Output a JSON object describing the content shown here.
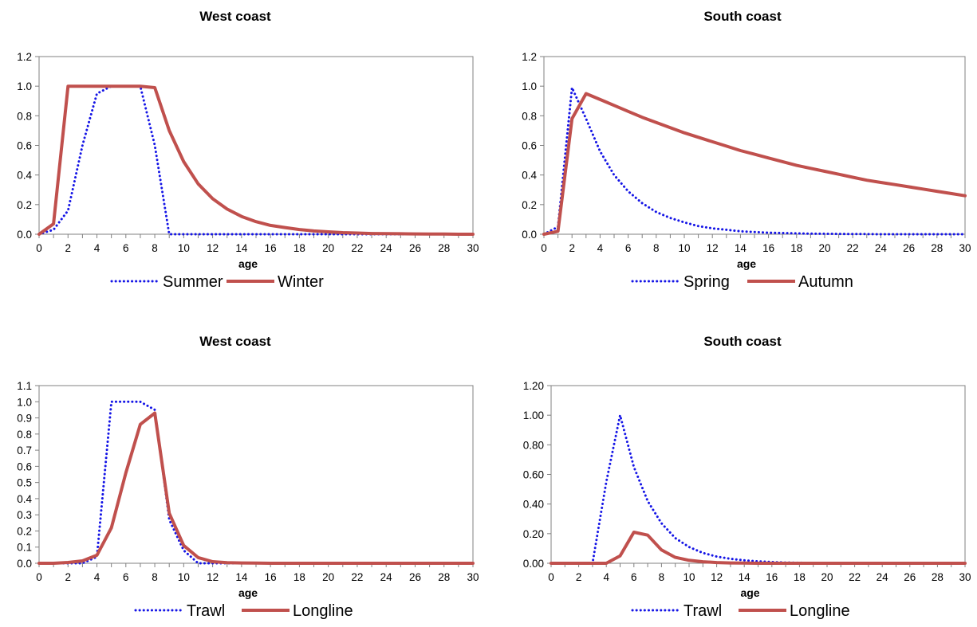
{
  "chart_data": [
    {
      "type": "line",
      "title": "West coast",
      "xlabel": "age",
      "ylabel": "",
      "xlim": [
        0,
        30
      ],
      "ylim": [
        0,
        1.2
      ],
      "yticks": [
        "0.0",
        "0.2",
        "0.4",
        "0.6",
        "0.8",
        "1.0",
        "1.2"
      ],
      "xticks": [
        "0",
        "2",
        "4",
        "6",
        "8",
        "10",
        "12",
        "14",
        "16",
        "18",
        "20",
        "22",
        "24",
        "26",
        "28",
        "30"
      ],
      "grid": false,
      "legend_position": "bottom",
      "x": [
        0,
        1,
        2,
        3,
        4,
        5,
        6,
        7,
        8,
        9,
        10,
        11,
        12,
        13,
        14,
        15,
        16,
        17,
        18,
        19,
        20,
        21,
        22,
        23,
        24,
        25,
        26,
        27,
        28,
        29,
        30
      ],
      "series": [
        {
          "name": "Summer",
          "style": "dotted",
          "color": "#1515e6",
          "values": [
            0,
            0.03,
            0.16,
            0.6,
            0.95,
            1.0,
            1.0,
            1.0,
            0.6,
            0,
            0,
            0,
            0,
            0,
            0,
            0,
            0,
            0,
            0,
            0,
            0,
            0,
            0,
            0,
            0,
            0,
            0,
            0,
            0,
            0,
            0
          ]
        },
        {
          "name": "Winter",
          "style": "solid",
          "color": "#c0504d",
          "values": [
            0,
            0.07,
            1.0,
            1.0,
            1.0,
            1.0,
            1.0,
            1.0,
            0.99,
            0.7,
            0.49,
            0.34,
            0.24,
            0.17,
            0.12,
            0.085,
            0.06,
            0.045,
            0.032,
            0.022,
            0.016,
            0.011,
            0.008,
            0.005,
            0.004,
            0.003,
            0.002,
            0.001,
            0.001,
            0,
            0
          ]
        }
      ]
    },
    {
      "type": "line",
      "title": "South coast",
      "xlabel": "age",
      "ylabel": "",
      "xlim": [
        0,
        30
      ],
      "ylim": [
        0,
        1.2
      ],
      "yticks": [
        "0.0",
        "0.2",
        "0.4",
        "0.6",
        "0.8",
        "1.0",
        "1.2"
      ],
      "xticks": [
        "0",
        "2",
        "4",
        "6",
        "8",
        "10",
        "12",
        "14",
        "16",
        "18",
        "20",
        "22",
        "24",
        "26",
        "28",
        "30"
      ],
      "grid": false,
      "legend_position": "bottom",
      "x": [
        0,
        1,
        2,
        3,
        4,
        5,
        6,
        7,
        8,
        9,
        10,
        11,
        12,
        13,
        14,
        15,
        16,
        17,
        18,
        19,
        20,
        21,
        22,
        23,
        24,
        25,
        26,
        27,
        28,
        29,
        30
      ],
      "series": [
        {
          "name": "Spring",
          "style": "dotted",
          "color": "#1515e6",
          "values": [
            0,
            0.05,
            0.99,
            0.78,
            0.56,
            0.4,
            0.29,
            0.21,
            0.15,
            0.11,
            0.08,
            0.055,
            0.04,
            0.03,
            0.02,
            0.015,
            0.01,
            0.008,
            0.006,
            0.004,
            0.003,
            0.002,
            0.001,
            0.001,
            0,
            0,
            0,
            0,
            0,
            0,
            0
          ]
        },
        {
          "name": "Autumn",
          "style": "solid",
          "color": "#c0504d",
          "values": [
            0.0,
            0.02,
            0.78,
            0.95,
            0.91,
            0.87,
            0.83,
            0.79,
            0.755,
            0.72,
            0.685,
            0.655,
            0.625,
            0.595,
            0.565,
            0.54,
            0.515,
            0.49,
            0.465,
            0.445,
            0.425,
            0.405,
            0.385,
            0.365,
            0.35,
            0.335,
            0.32,
            0.305,
            0.29,
            0.275,
            0.26
          ]
        }
      ]
    },
    {
      "type": "line",
      "title": "West coast",
      "xlabel": "age",
      "ylabel": "",
      "xlim": [
        0,
        30
      ],
      "ylim": [
        0,
        1.1
      ],
      "yticks": [
        "0.0",
        "0.1",
        "0.2",
        "0.3",
        "0.4",
        "0.5",
        "0.6",
        "0.7",
        "0.8",
        "0.9",
        "1.0",
        "1.1"
      ],
      "xticks": [
        "0",
        "2",
        "4",
        "6",
        "8",
        "10",
        "12",
        "14",
        "16",
        "18",
        "20",
        "22",
        "24",
        "26",
        "28",
        "30"
      ],
      "grid": false,
      "legend_position": "bottom",
      "x": [
        0,
        1,
        2,
        3,
        4,
        5,
        6,
        7,
        8,
        9,
        10,
        11,
        12,
        13,
        14,
        15,
        16,
        17,
        18,
        19,
        20,
        21,
        22,
        23,
        24,
        25,
        26,
        27,
        28,
        29,
        30
      ],
      "series": [
        {
          "name": "Trawl",
          "style": "dotted",
          "color": "#1515e6",
          "values": [
            0,
            0,
            0,
            0,
            0.04,
            1.0,
            1.0,
            1.0,
            0.95,
            0.27,
            0.08,
            0,
            0,
            0,
            0,
            0,
            0,
            0,
            0,
            0,
            0,
            0,
            0,
            0,
            0,
            0,
            0,
            0,
            0,
            0,
            0
          ]
        },
        {
          "name": "Longline",
          "style": "solid",
          "color": "#c0504d",
          "values": [
            0,
            0,
            0.005,
            0.015,
            0.05,
            0.22,
            0.56,
            0.86,
            0.93,
            0.31,
            0.11,
            0.035,
            0.01,
            0.004,
            0.002,
            0.001,
            0,
            0,
            0,
            0,
            0,
            0,
            0,
            0,
            0,
            0,
            0,
            0,
            0,
            0,
            0
          ]
        }
      ]
    },
    {
      "type": "line",
      "title": "South coast",
      "xlabel": "age",
      "ylabel": "",
      "xlim": [
        0,
        30
      ],
      "ylim": [
        0,
        1.2
      ],
      "yticks": [
        "0.00",
        "0.20",
        "0.40",
        "0.60",
        "0.80",
        "1.00",
        "1.20"
      ],
      "xticks": [
        "0",
        "2",
        "4",
        "6",
        "8",
        "10",
        "12",
        "14",
        "16",
        "18",
        "20",
        "22",
        "24",
        "26",
        "28",
        "30"
      ],
      "grid": false,
      "legend_position": "bottom",
      "x": [
        0,
        1,
        2,
        3,
        4,
        5,
        6,
        7,
        8,
        9,
        10,
        11,
        12,
        13,
        14,
        15,
        16,
        17,
        18,
        19,
        20,
        21,
        22,
        23,
        24,
        25,
        26,
        27,
        28,
        29,
        30
      ],
      "series": [
        {
          "name": "Trawl",
          "style": "dotted",
          "color": "#1515e6",
          "values": [
            0,
            0,
            0,
            0,
            0.55,
            1.0,
            0.65,
            0.42,
            0.27,
            0.17,
            0.11,
            0.07,
            0.045,
            0.03,
            0.02,
            0.013,
            0.008,
            0.005,
            0.003,
            0.002,
            0.001,
            0,
            0,
            0,
            0,
            0,
            0,
            0,
            0,
            0,
            0
          ]
        },
        {
          "name": "Longline",
          "style": "solid",
          "color": "#c0504d",
          "values": [
            0,
            0,
            0,
            0,
            0,
            0.05,
            0.21,
            0.19,
            0.09,
            0.04,
            0.02,
            0.01,
            0.005,
            0.002,
            0.001,
            0,
            0,
            0,
            0,
            0,
            0,
            0,
            0,
            0,
            0,
            0,
            0,
            0,
            0,
            0,
            0
          ]
        }
      ]
    }
  ]
}
